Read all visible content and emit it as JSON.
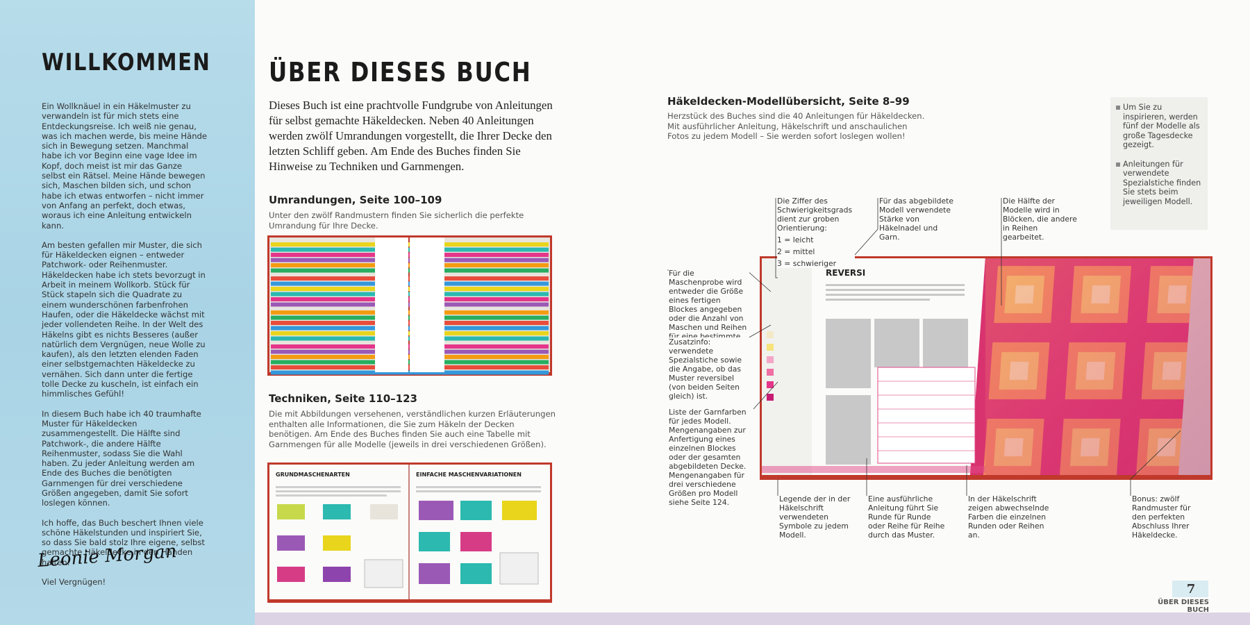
{
  "left": {
    "title": "WILLKOMMEN",
    "paragraphs": [
      "Ein Wollknäuel in ein Häkelmuster zu verwandeln ist für mich stets eine Entdeckungsreise. Ich weiß nie genau, was ich machen werde, bis meine Hände sich in Bewegung setzen. Manchmal habe ich vor Beginn eine vage Idee im Kopf, doch meist ist mir das Ganze selbst ein Rätsel. Meine Hände bewegen sich, Maschen bilden sich, und schon habe ich etwas entworfen – nicht immer von Anfang an perfekt, doch etwas, woraus ich eine Anleitung entwickeln kann.",
      "Am besten gefallen mir Muster, die sich für Häkeldecken eignen – entweder Patchwork- oder Reihenmuster. Häkeldecken habe ich stets bevorzugt in Arbeit in meinem Wollkorb. Stück für Stück stapeln sich die Quadrate zu einem wunderschönen farbenfrohen Haufen, oder die Häkeldecke wächst mit jeder vollendeten Reihe. In der Welt des Häkelns gibt es nichts Besseres (außer natürlich dem Vergnügen, neue Wolle zu kaufen), als den letzten elenden Faden einer selbstgemachten Häkeldecke zu vernähen. Sich dann unter die fertige tolle Decke zu kuscheln, ist einfach ein himmlisches Gefühl!",
      "In diesem Buch habe ich 40 traumhafte Muster für Häkeldecken zusammengestellt. Die Hälfte sind Patchwork-, die andere Hälfte Reihenmuster, sodass Sie die Wahl haben. Zu jeder Anleitung werden am Ende des Buches die benötigten Garnmengen für drei verschiedene Größen angegeben, damit Sie sofort loslegen können.",
      "Ich hoffe, das Buch beschert Ihnen viele schöne Häkelstunden und inspiriert Sie, so dass Sie bald stolz Ihre eigene, selbst gemachte Häkeldecke in den Händen halten.",
      "Viel Vergnügen!"
    ],
    "signature": "Leonie Morgan"
  },
  "middle": {
    "title": "ÜBER DIESES BUCH",
    "intro": "Dieses Buch ist eine prachtvolle Fundgrube von Anleitungen für selbst gemachte Häkeldecken. Neben 40 Anleitungen werden zwölf Umrandungen vorgestellt, die Ihrer Decke den letzten Schliff geben. Am Ende des Buches finden Sie Hinweise zu Techniken und Garnmengen.",
    "sections": [
      {
        "heading": "Umrandungen, Seite 100–109",
        "text": "Unter den zwölf Randmustern finden Sie sicherlich die perfekte Umrandung für Ihre Decke."
      },
      {
        "heading": "Techniken, Seite 110–123",
        "text": "Die mit Abbildungen versehenen, verständlichen kurzen Erläuterungen enthalten alle Informationen, die Sie zum Häkeln der Decken benötigen. Am Ende des Buches finden Sie auch eine Tabelle mit Garnmengen für alle Modelle (jeweils in drei verschiedenen Größen)."
      }
    ],
    "technique_pages": [
      "GRUNDMASCHENARTEN",
      "EINFACHE MASCHENVARIATIONEN"
    ]
  },
  "right": {
    "heading": "Häkeldecken-Modellübersicht, Seite 8–99",
    "text": "Herzstück des Buches sind die 40 Anleitungen für Häkeldecken. Mit ausführlicher Anleitung, Häkelschrift und anschaulichen Fotos zu jedem Modell – Sie werden sofort loslegen wollen!",
    "sidebar": [
      "Um Sie zu inspirieren, werden fünf der Modelle als große Tagesdecke gezeigt.",
      "Anleitungen für verwendete Spezialstiche finden Sie stets beim jeweiligen Modell."
    ],
    "sample_title": "REVERSI",
    "callouts": [
      {
        "text": "Die Ziffer des Schwierigkeitsgrads dient zur groben Orientierung:",
        "items": [
          "1 = leicht",
          "2 = mittel",
          "3 = schwieriger"
        ]
      },
      {
        "text": "Für das abgebildete Modell verwendete Stärke von Häkelnadel und Garn."
      },
      {
        "text": "Die Hälfte der Modelle wird in Blöcken, die andere in Reihen gearbeitet."
      },
      {
        "text": "Für die Maschenprobe wird entweder die Größe eines fertigen Blockes angegeben oder die Anzahl von Maschen und Reihen für eine bestimmte Größe."
      },
      {
        "text": "Zusatzinfo: verwendete Spezialstiche sowie die Angabe, ob das Muster reversibel (von beiden Seiten gleich) ist."
      },
      {
        "text": "Liste der Garnfarben für jedes Modell. Mengenangaben zur Anfertigung eines einzelnen Blockes oder der gesamten abgebildeten Decke. Mengenangaben für drei verschiedene Größen pro Modell siehe Seite 124."
      },
      {
        "text": "Legende der in der Häkelschrift verwendeten Symbole zu jedem Modell."
      },
      {
        "text": "Eine ausführliche Anleitung führt Sie Runde für Runde oder Reihe für Reihe durch das Muster."
      },
      {
        "text": "In der Häkelschrift zeigen abwechselnde Farben die einzelnen Runden oder Reihen an."
      },
      {
        "text": "Bonus: zwölf Randmuster für den perfekten Abschluss Ihrer Häkeldecke."
      }
    ]
  },
  "footer": {
    "page_number": "7",
    "section": "ÜBER DIESES BUCH"
  }
}
